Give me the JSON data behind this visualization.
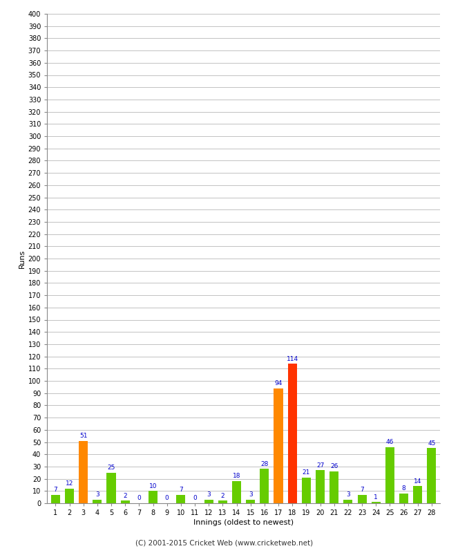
{
  "innings": [
    1,
    2,
    3,
    4,
    5,
    6,
    7,
    8,
    9,
    10,
    11,
    12,
    13,
    14,
    15,
    16,
    17,
    18,
    19,
    20,
    21,
    22,
    23,
    24,
    25,
    26,
    27,
    28
  ],
  "runs": [
    7,
    12,
    51,
    3,
    25,
    2,
    0,
    10,
    0,
    7,
    0,
    3,
    2,
    18,
    3,
    28,
    94,
    114,
    21,
    27,
    26,
    3,
    7,
    1,
    46,
    8,
    14,
    45
  ],
  "colors": [
    "#66cc00",
    "#66cc00",
    "#ff8800",
    "#66cc00",
    "#66cc00",
    "#66cc00",
    "#66cc00",
    "#66cc00",
    "#66cc00",
    "#66cc00",
    "#66cc00",
    "#66cc00",
    "#66cc00",
    "#66cc00",
    "#66cc00",
    "#66cc00",
    "#ff8800",
    "#ff3300",
    "#66cc00",
    "#66cc00",
    "#66cc00",
    "#66cc00",
    "#66cc00",
    "#66cc00",
    "#66cc00",
    "#66cc00",
    "#66cc00",
    "#66cc00"
  ],
  "xlabel": "Innings (oldest to newest)",
  "ylabel": "Runs",
  "ylim": [
    0,
    400
  ],
  "yticks": [
    0,
    10,
    20,
    30,
    40,
    50,
    60,
    70,
    80,
    90,
    100,
    110,
    120,
    130,
    140,
    150,
    160,
    170,
    180,
    190,
    200,
    210,
    220,
    230,
    240,
    250,
    260,
    270,
    280,
    290,
    300,
    310,
    320,
    330,
    340,
    350,
    360,
    370,
    380,
    390,
    400
  ],
  "footer": "(C) 2001-2015 Cricket Web (www.cricketweb.net)",
  "label_color": "#0000cc",
  "bg_color": "#ffffff",
  "grid_color": "#aaaaaa",
  "bar_width": 0.65
}
